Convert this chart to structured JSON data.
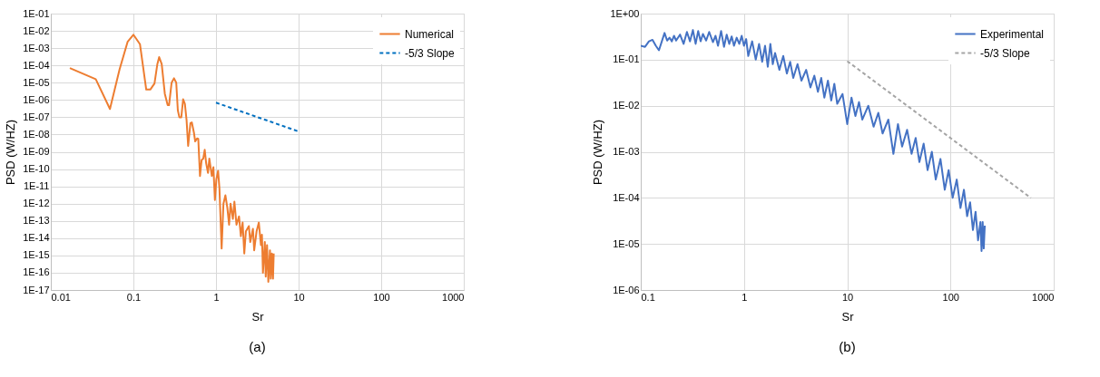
{
  "chart_data": [
    {
      "type": "line",
      "xlabel": "Sr",
      "ylabel": "PSD (W/HZ)",
      "log": "xy",
      "grid": true,
      "legend": "top right",
      "annotations": [
        "(a)"
      ],
      "xlim": [
        0.01,
        1000
      ],
      "xticks": [
        0.01,
        0.1,
        1,
        10,
        100,
        1000
      ],
      "ylim": [
        1e-17,
        0.1
      ],
      "yticks": [
        {
          "value": 1e-17,
          "label": "1E-17"
        },
        {
          "value": 1e-16,
          "label": "1E-16"
        },
        {
          "value": 1e-15,
          "label": "1E-15"
        },
        {
          "value": 1e-14,
          "label": "1E-14"
        },
        {
          "value": 1e-13,
          "label": "1E-13"
        },
        {
          "value": 1e-12,
          "label": "1E-12"
        },
        {
          "value": 1e-11,
          "label": "1E-11"
        },
        {
          "value": 1e-10,
          "label": "1E-10"
        },
        {
          "value": 1e-09,
          "label": "1E-09"
        },
        {
          "value": 1e-08,
          "label": "1E-08"
        },
        {
          "value": 1e-07,
          "label": "1E-07"
        },
        {
          "value": 1e-06,
          "label": "1E-06"
        },
        {
          "value": 1e-05,
          "label": "1E-05"
        },
        {
          "value": 0.0001,
          "label": "1E-04"
        },
        {
          "value": 0.001,
          "label": "1E-03"
        },
        {
          "value": 0.01,
          "label": "1E-02"
        },
        {
          "value": 0.1,
          "label": "1E-01"
        }
      ],
      "series": [
        {
          "name": "Numerical",
          "color": "#ed7d31",
          "line_style": "solid",
          "x": [
            0.017,
            0.035,
            0.052,
            0.068,
            0.085,
            0.1,
            0.12,
            0.143,
            0.16,
            0.18,
            0.195,
            0.205,
            0.22,
            0.24,
            0.26,
            0.27,
            0.29,
            0.31,
            0.33,
            0.345,
            0.36,
            0.38,
            0.4,
            0.42,
            0.44,
            0.46,
            0.49,
            0.51,
            0.54,
            0.56,
            0.59,
            0.61,
            0.64,
            0.67,
            0.7,
            0.73,
            0.76,
            0.8,
            0.83,
            0.89,
            0.93,
            0.97,
            1.01,
            1.06,
            1.1,
            1.17,
            1.23,
            1.3,
            1.37,
            1.44,
            1.5,
            1.6,
            1.67,
            1.77,
            1.9,
            2.0,
            2.1,
            2.2,
            2.3,
            2.5,
            2.6,
            2.8,
            2.9,
            3.1,
            3.3,
            3.5,
            3.6,
            3.7,
            3.9,
            4.0,
            4.15,
            4.3,
            4.5,
            4.6,
            4.75,
            4.9,
            5.0
          ],
          "values": [
            7e-05,
            1.6e-05,
            3e-07,
            6e-05,
            0.0023,
            0.006,
            0.0017,
            4e-06,
            4e-06,
            9e-06,
            0.00012,
            0.0003,
            0.00012,
            2.3e-06,
            5e-07,
            5e-07,
            1e-05,
            1.8e-05,
            1e-05,
            2.5e-07,
            1e-07,
            1e-07,
            1.1e-06,
            6e-07,
            7e-08,
            2.2e-09,
            4.5e-08,
            5e-08,
            1.3e-08,
            4e-09,
            6e-09,
            5.6e-09,
            4e-11,
            3.4e-10,
            4e-10,
            1.3e-09,
            2.2e-10,
            6e-11,
            4e-10,
            4e-11,
            1.3e-10,
            1.6e-12,
            2.5e-11,
            8e-11,
            8e-12,
            2.5e-15,
            1e-12,
            3e-12,
            6e-13,
            6e-14,
            1e-12,
            1.3e-13,
            1.3e-12,
            6e-14,
            1.8e-13,
            1.3e-14,
            8e-14,
            1.3e-15,
            2.5e-14,
            5e-14,
            6e-15,
            3.5e-14,
            2e-15,
            2.5e-14,
            8e-14,
            4e-15,
            1.6e-14,
            1e-16,
            6e-15,
            6e-17,
            4e-15,
            3e-17,
            2e-15,
            4.5e-17,
            1.3e-15,
            4.5e-17,
            1.3e-15
          ]
        },
        {
          "name": "-5/3 Slope",
          "color": "#0070c0",
          "line_style": "dashed",
          "x": [
            1,
            10
          ],
          "values": [
            7e-07,
            1.5e-08
          ]
        }
      ]
    },
    {
      "type": "line",
      "xlabel": "Sr",
      "ylabel": "PSD (W/HZ)",
      "log": "xy",
      "grid": true,
      "legend": "top right",
      "annotations": [
        "(b)"
      ],
      "xlim": [
        0.1,
        1000
      ],
      "xticks": [
        0.1,
        1,
        10,
        100,
        1000
      ],
      "ylim": [
        1e-06,
        1
      ],
      "yticks": [
        {
          "value": 1e-06,
          "label": "1E-06"
        },
        {
          "value": 1e-05,
          "label": "1E-05"
        },
        {
          "value": 0.0001,
          "label": "1E-04"
        },
        {
          "value": 0.001,
          "label": "1E-03"
        },
        {
          "value": 0.01,
          "label": "1E-02"
        },
        {
          "value": 0.1,
          "label": "1E-01"
        },
        {
          "value": 1,
          "label": "1E+00"
        }
      ],
      "series": [
        {
          "name": "Experimental",
          "color": "#4472c4",
          "line_style": "solid",
          "x": [
            0.1,
            0.11,
            0.12,
            0.13,
            0.14,
            0.15,
            0.16,
            0.17,
            0.18,
            0.19,
            0.2,
            0.21,
            0.22,
            0.24,
            0.26,
            0.28,
            0.3,
            0.32,
            0.34,
            0.36,
            0.38,
            0.4,
            0.43,
            0.46,
            0.5,
            0.53,
            0.56,
            0.6,
            0.64,
            0.68,
            0.72,
            0.76,
            0.8,
            0.85,
            0.9,
            0.95,
            1.0,
            1.05,
            1.1,
            1.2,
            1.3,
            1.4,
            1.5,
            1.6,
            1.7,
            1.8,
            1.9,
            2.0,
            2.2,
            2.4,
            2.6,
            2.8,
            3.0,
            3.3,
            3.6,
            4.0,
            4.4,
            4.8,
            5.2,
            5.6,
            6.0,
            6.5,
            7.0,
            7.5,
            8.0,
            9.0,
            10,
            11,
            12,
            13,
            14,
            16,
            18,
            20,
            22,
            25,
            28,
            31,
            34,
            38,
            42,
            46,
            50,
            55,
            60,
            66,
            72,
            80,
            88,
            96,
            105,
            115,
            125,
            135,
            145,
            155,
            165,
            175,
            185,
            195,
            200,
            205,
            210,
            215
          ],
          "values": [
            0.2,
            0.19,
            0.25,
            0.27,
            0.2,
            0.16,
            0.25,
            0.38,
            0.26,
            0.3,
            0.25,
            0.33,
            0.26,
            0.35,
            0.22,
            0.4,
            0.25,
            0.44,
            0.22,
            0.42,
            0.25,
            0.36,
            0.26,
            0.4,
            0.24,
            0.33,
            0.2,
            0.42,
            0.19,
            0.35,
            0.22,
            0.32,
            0.2,
            0.3,
            0.22,
            0.33,
            0.2,
            0.28,
            0.12,
            0.25,
            0.1,
            0.22,
            0.09,
            0.2,
            0.07,
            0.22,
            0.08,
            0.14,
            0.06,
            0.12,
            0.05,
            0.09,
            0.04,
            0.08,
            0.035,
            0.06,
            0.025,
            0.045,
            0.02,
            0.04,
            0.015,
            0.035,
            0.013,
            0.03,
            0.011,
            0.018,
            0.004,
            0.015,
            0.006,
            0.012,
            0.005,
            0.01,
            0.0035,
            0.007,
            0.0025,
            0.005,
            0.0009,
            0.004,
            0.0013,
            0.003,
            0.0009,
            0.002,
            0.0006,
            0.0015,
            0.0004,
            0.001,
            0.00025,
            0.0007,
            0.00015,
            0.0004,
            0.0001,
            0.00025,
            6e-05,
            0.00015,
            4e-05,
            8e-05,
            2e-05,
            5e-05,
            1.2e-05,
            3e-05,
            7e-06,
            3e-05,
            8e-06,
            2.5e-05
          ]
        },
        {
          "name": "-5/3 Slope",
          "color": "#a5a5a5",
          "line_style": "dashed",
          "x": [
            10,
            600
          ],
          "values": [
            0.093,
            0.0001
          ]
        }
      ]
    }
  ]
}
